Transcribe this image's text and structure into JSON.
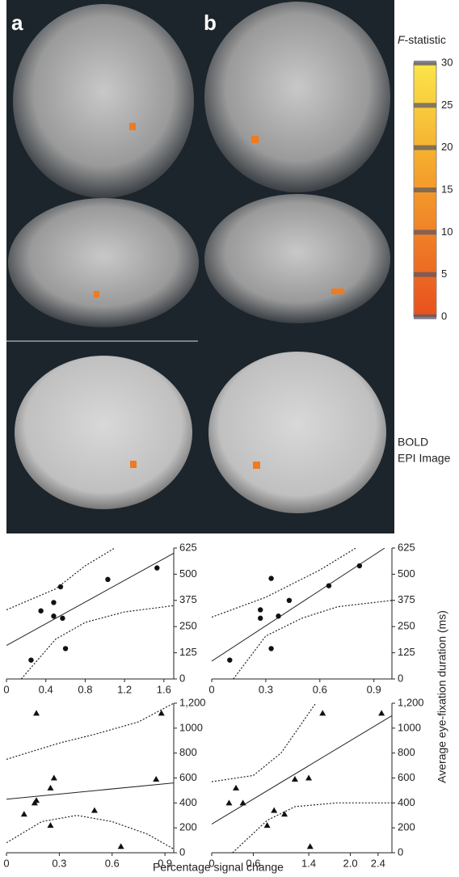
{
  "figure": {
    "panel_labels": [
      "a",
      "b"
    ],
    "colorbar": {
      "title_italic": "F",
      "title_rest": "-statistic",
      "ticks": [
        0,
        5,
        10,
        15,
        20,
        25,
        30
      ]
    },
    "image_label": [
      "BOLD",
      "EPI Image"
    ],
    "y_axis_label": "Average eye-fixation duration (ms)",
    "x_axis_label": "Percentage signal change"
  },
  "chart_data": [
    {
      "type": "scatter",
      "marker": "circle",
      "x": [
        0.25,
        0.35,
        0.48,
        0.48,
        0.55,
        0.57,
        0.6,
        1.03,
        1.53
      ],
      "y": [
        90,
        325,
        365,
        300,
        440,
        290,
        145,
        475,
        530
      ],
      "xlim": [
        0,
        1.7
      ],
      "ylim": [
        0,
        625
      ],
      "xticks": [
        {
          "value": 0,
          "label": "0"
        },
        0.4,
        0.8,
        1.2,
        1.6
      ],
      "yticks": [
        0,
        125,
        250,
        375,
        500,
        625
      ],
      "fit": {
        "x": [
          0,
          1.7
        ],
        "y": [
          160,
          600
        ]
      },
      "ci_upper": {
        "x": [
          0,
          0.5,
          0.8,
          1.1
        ],
        "y": [
          330,
          430,
          540,
          625
        ]
      },
      "ci_lower": {
        "x": [
          0.15,
          0.5,
          0.8,
          1.2,
          1.7
        ],
        "y": [
          0,
          190,
          270,
          320,
          350
        ]
      }
    },
    {
      "type": "scatter",
      "marker": "circle",
      "x": [
        0.1,
        0.27,
        0.27,
        0.33,
        0.33,
        0.37,
        0.43,
        0.65,
        0.82
      ],
      "y": [
        90,
        330,
        290,
        480,
        145,
        300,
        375,
        445,
        540
      ],
      "xlim": [
        0,
        1
      ],
      "ylim": [
        0,
        625
      ],
      "xticks": [
        {
          "value": 0,
          "label": "0"
        },
        0.3,
        0.6,
        0.9
      ],
      "yticks": [
        0,
        125,
        250,
        375,
        500,
        625
      ],
      "fit": {
        "x": [
          0,
          0.96
        ],
        "y": [
          85,
          625
        ]
      },
      "ci_upper": {
        "x": [
          0,
          0.3,
          0.6,
          0.8
        ],
        "y": [
          295,
          390,
          520,
          625
        ]
      },
      "ci_lower": {
        "x": [
          0.12,
          0.3,
          0.5,
          0.7,
          1
        ],
        "y": [
          0,
          205,
          290,
          345,
          375
        ]
      }
    },
    {
      "type": "scatter",
      "marker": "triangle",
      "x": [
        0.1,
        0.16,
        0.17,
        0.17,
        0.25,
        0.25,
        0.27,
        0.5,
        0.65,
        0.85,
        0.88
      ],
      "y": [
        310,
        400,
        420,
        1120,
        520,
        220,
        600,
        340,
        50,
        590,
        1120
      ],
      "xlim": [
        0,
        0.95
      ],
      "ylim": [
        0,
        1200
      ],
      "xticks": [
        {
          "value": 0,
          "label": "0"
        },
        0.3,
        0.6,
        0.9
      ],
      "yticks": [
        0,
        200,
        400,
        600,
        800,
        1000,
        {
          "value": 1200,
          "label": "1,200"
        }
      ],
      "fit": {
        "x": [
          0,
          0.95
        ],
        "y": [
          430,
          560
        ]
      },
      "ci_upper": {
        "x": [
          0,
          0.3,
          0.5,
          0.75,
          0.95
        ],
        "y": [
          750,
          880,
          950,
          1050,
          1200
        ]
      },
      "ci_lower": {
        "x": [
          0,
          0.2,
          0.4,
          0.6,
          0.8,
          0.95
        ],
        "y": [
          80,
          250,
          300,
          250,
          150,
          30
        ]
      }
    },
    {
      "type": "scatter",
      "marker": "triangle",
      "x": [
        0.25,
        0.35,
        0.45,
        0.8,
        0.9,
        1.05,
        1.2,
        1.4,
        1.42,
        1.6,
        2.45
      ],
      "y": [
        400,
        520,
        400,
        220,
        340,
        310,
        590,
        600,
        50,
        1120,
        1120
      ],
      "xlim": [
        0,
        2.6
      ],
      "ylim": [
        0,
        1200
      ],
      "xticks": [
        {
          "value": 0,
          "label": "0"
        },
        0.6,
        1.4,
        {
          "value": 2,
          "label": "2.0"
        },
        2.4
      ],
      "yticks": [
        0,
        200,
        400,
        600,
        800,
        1000,
        {
          "value": 1200,
          "label": "1,200"
        }
      ],
      "fit": {
        "x": [
          0,
          2.6
        ],
        "y": [
          230,
          1100
        ]
      },
      "ci_upper": {
        "x": [
          0,
          0.6,
          1,
          1.5
        ],
        "y": [
          570,
          620,
          800,
          1200
        ]
      },
      "ci_lower": {
        "x": [
          0.3,
          0.8,
          1.2,
          1.8,
          2.6
        ],
        "y": [
          0,
          260,
          370,
          400,
          400
        ]
      }
    }
  ]
}
